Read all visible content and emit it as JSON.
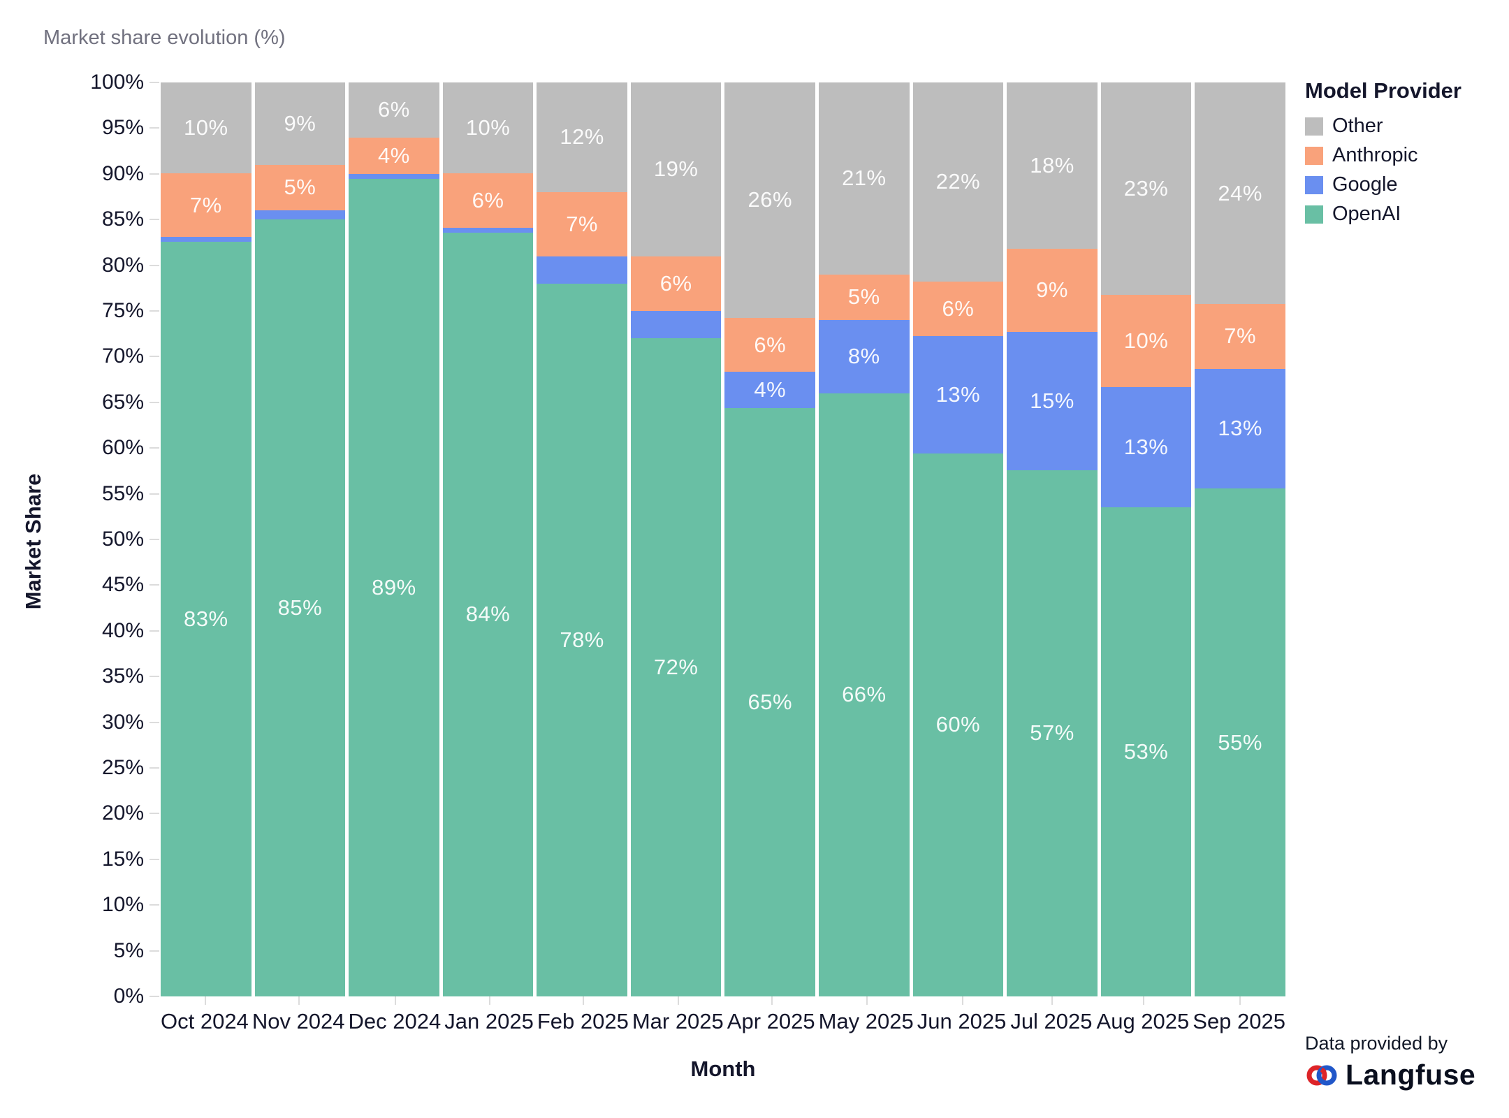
{
  "chart_data": {
    "type": "bar",
    "stacked": true,
    "title": "Market share evolution (%)",
    "xlabel": "Month",
    "ylabel": "Market Share",
    "ylim": [
      0,
      100
    ],
    "ytick_step": 5,
    "ytick_suffix": "%",
    "grid": false,
    "categories": [
      "Oct 2024",
      "Nov 2024",
      "Dec 2024",
      "Jan 2025",
      "Feb 2025",
      "Mar 2025",
      "Apr 2025",
      "May 2025",
      "Jun 2025",
      "Jul 2025",
      "Aug 2025",
      "Sep 2025"
    ],
    "series": [
      {
        "name": "OpenAI",
        "color": "#69bfa4",
        "values": [
          83,
          85,
          89,
          84,
          78,
          72,
          65,
          66,
          60,
          57,
          53,
          55
        ],
        "labels": [
          "83%",
          "85%",
          "89%",
          "84%",
          "78%",
          "72%",
          "65%",
          "66%",
          "60%",
          "57%",
          "53%",
          "55%"
        ]
      },
      {
        "name": "Google",
        "color": "#6a8ff0",
        "values": [
          0.5,
          1,
          0.5,
          0.5,
          3,
          3,
          4,
          8,
          13,
          15,
          13,
          13
        ],
        "labels": [
          null,
          null,
          null,
          null,
          null,
          null,
          "4%",
          "8%",
          "13%",
          "15%",
          "13%",
          "13%"
        ]
      },
      {
        "name": "Anthropic",
        "color": "#f9a27b",
        "values": [
          7,
          5,
          4,
          6,
          7,
          6,
          6,
          5,
          6,
          9,
          10,
          7
        ],
        "labels": [
          "7%",
          "5%",
          "4%",
          "6%",
          "7%",
          "6%",
          "6%",
          "5%",
          "6%",
          "9%",
          "10%",
          "7%"
        ]
      },
      {
        "name": "Other",
        "color": "#bdbdbd",
        "values": [
          10,
          9,
          6,
          10,
          12,
          19,
          26,
          21,
          22,
          18,
          23,
          24
        ],
        "labels": [
          "10%",
          "9%",
          "6%",
          "10%",
          "12%",
          "19%",
          "26%",
          "21%",
          "22%",
          "18%",
          "23%",
          "24%"
        ]
      }
    ],
    "legend": {
      "title": "Model Provider",
      "position": "right",
      "entries": [
        {
          "label": "Other",
          "color": "#bdbdbd"
        },
        {
          "label": "Anthropic",
          "color": "#f9a27b"
        },
        {
          "label": "Google",
          "color": "#6a8ff0"
        },
        {
          "label": "OpenAI",
          "color": "#69bfa4"
        }
      ]
    }
  },
  "footer": {
    "provided_by": "Data provided by",
    "brand": "Langfuse"
  },
  "icons": {
    "brand_icon": "langfuse-knot-icon",
    "brand_icon_colors": {
      "red": "#dd2428",
      "blue": "#2157c9"
    }
  }
}
